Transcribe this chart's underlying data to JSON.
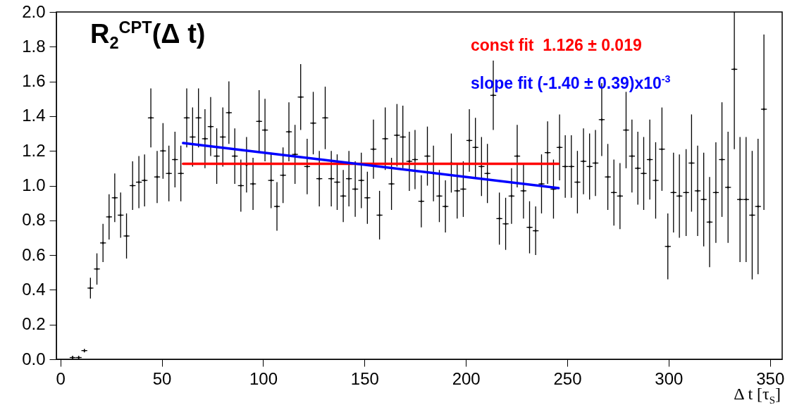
{
  "chart_data": {
    "type": "scatter",
    "title": "R$_{2}$$^{CPT}$(Δ t)",
    "xlabel": "Δ t [τ$_{S}$]",
    "xlim": [
      -2,
      356
    ],
    "ylim": [
      0,
      2
    ],
    "xticks": [
      0,
      50,
      100,
      150,
      200,
      250,
      300,
      350
    ],
    "yticks": [
      {
        "value": 0,
        "label": "0.0"
      },
      0.2,
      0.4,
      0.6,
      0.8,
      {
        "value": 1,
        "label": "1.0"
      },
      1.2,
      1.4,
      1.6,
      1.8,
      {
        "value": 2,
        "label": "2.0"
      }
    ],
    "grid": false,
    "legend": "top right",
    "series": [
      {
        "color": "#000000",
        "marker": "cross",
        "x": [
          6.0,
          9.0,
          11.8,
          14.8,
          18.0,
          21.0,
          24.0,
          26.8,
          29.7,
          32.6,
          35.6,
          38.7,
          41.5,
          44.6,
          47.7,
          50.6,
          53.5,
          56.5,
          59.4,
          62.3,
          65.2,
          68.1,
          71.3,
          74.1,
          77.1,
          80.1,
          83.1,
          86.0,
          89.0,
          91.8,
          95.0,
          98.0,
          100.9,
          103.9,
          106.8,
          109.8,
          112.7,
          115.7,
          118.5,
          121.7,
          124.7,
          127.7,
          130.6,
          133.6,
          136.5,
          139.5,
          142.3,
          145.4,
          148.4,
          151.4,
          154.4,
          157.4,
          160.2,
          163.3,
          166.0,
          168.9,
          172.1,
          174.9,
          178.0,
          181.0,
          184.0,
          186.9,
          189.9,
          192.8,
          195.7,
          198.7,
          201.7,
          204.7,
          207.7,
          210.6,
          213.5,
          216.5,
          219.6,
          222.5,
          225.3,
          228.4,
          231.4,
          234.4,
          237.3,
          240.3,
          243.2,
          246.2,
          249.0,
          252.0,
          255.0,
          258.0,
          261.0,
          263.9,
          267.0,
          270.0,
          273.0,
          276.0,
          279.0,
          281.9,
          284.8,
          287.7,
          290.7,
          293.6,
          296.7,
          299.6,
          302.4,
          305.3,
          308.6,
          311.3,
          314.3,
          317.3,
          320.2,
          323.3,
          326.3,
          329.3,
          332.4,
          335.2,
          338.2,
          341.2,
          344.1,
          347.0
        ],
        "values": [
          0.01,
          0.01,
          0.05,
          0.41,
          0.52,
          0.67,
          0.82,
          0.93,
          0.83,
          0.71,
          1.0,
          1.02,
          1.03,
          1.39,
          1.05,
          1.2,
          1.07,
          1.15,
          1.07,
          1.39,
          1.28,
          1.39,
          1.27,
          1.34,
          1.17,
          1.28,
          1.42,
          1.17,
          1.0,
          1.12,
          1.01,
          1.37,
          1.32,
          1.03,
          0.88,
          1.06,
          1.31,
          1.18,
          1.51,
          1.11,
          1.36,
          1.04,
          1.39,
          1.04,
          1.02,
          0.94,
          1.04,
          0.98,
          1.03,
          0.93,
          1.21,
          0.83,
          1.27,
          1.01,
          1.29,
          1.28,
          1.14,
          1.15,
          0.91,
          1.17,
          1.07,
          0.94,
          0.88,
          1.13,
          0.97,
          0.98,
          1.26,
          1.22,
          1.11,
          1.07,
          1.52,
          0.81,
          0.78,
          0.94,
          1.17,
          0.97,
          0.76,
          0.74,
          1.01,
          1.19,
          0.98,
          1.22,
          1.11,
          1.11,
          1.02,
          1.14,
          1.11,
          1.13,
          1.38,
          1.05,
          0.96,
          0.94,
          1.32,
          1.17,
          1.1,
          1.07,
          1.15,
          1.03,
          1.21,
          0.65,
          0.96,
          0.94,
          0.96,
          1.13,
          0.97,
          0.92,
          0.79,
          0.96,
          1.15,
          0.99,
          1.67,
          0.92,
          0.92,
          0.83,
          0.88,
          1.44
        ],
        "errors": [
          0.01,
          0.01,
          0.01,
          0.06,
          0.09,
          0.11,
          0.13,
          0.14,
          0.13,
          0.13,
          0.14,
          0.15,
          0.15,
          0.17,
          0.15,
          0.16,
          0.16,
          0.16,
          0.16,
          0.17,
          0.17,
          0.17,
          0.17,
          0.17,
          0.16,
          0.17,
          0.18,
          0.16,
          0.15,
          0.16,
          0.15,
          0.18,
          0.18,
          0.16,
          0.14,
          0.16,
          0.17,
          0.17,
          0.19,
          0.16,
          0.18,
          0.16,
          0.18,
          0.16,
          0.16,
          0.15,
          0.16,
          0.16,
          0.16,
          0.15,
          0.17,
          0.14,
          0.18,
          0.15,
          0.18,
          0.18,
          0.17,
          0.17,
          0.15,
          0.17,
          0.16,
          0.15,
          0.15,
          0.17,
          0.16,
          0.16,
          0.18,
          0.17,
          0.17,
          0.17,
          0.2,
          0.15,
          0.15,
          0.16,
          0.18,
          0.16,
          0.15,
          0.14,
          0.17,
          0.18,
          0.17,
          0.19,
          0.18,
          0.18,
          0.18,
          0.19,
          0.19,
          0.19,
          0.21,
          0.19,
          0.19,
          0.19,
          0.22,
          0.21,
          0.21,
          0.21,
          0.23,
          0.22,
          0.24,
          0.19,
          0.23,
          0.24,
          0.25,
          0.28,
          0.26,
          0.27,
          0.26,
          0.29,
          0.33,
          0.32,
          [
            1.21,
            2.0
          ],
          0.36,
          0.36,
          0.37,
          0.39,
          [
            0.86,
            1.87
          ]
        ],
        "xerrors": [
          1.45,
          1.45,
          1.45,
          1.45,
          1.45,
          1.45,
          1.45,
          1.45,
          1.45,
          1.45,
          1.45,
          1.45,
          1.45,
          1.45,
          1.45,
          1.45,
          1.45,
          1.45,
          1.45,
          1.45,
          1.45,
          1.45,
          1.45,
          1.45,
          1.45,
          1.45,
          1.45,
          1.45,
          1.45,
          null,
          1.45,
          1.45,
          1.45,
          1.45,
          1.45,
          1.45,
          1.45,
          1.45,
          1.45,
          1.45,
          1.45,
          1.45,
          1.45,
          1.45,
          1.45,
          1.45,
          1.45,
          1.45,
          1.45,
          1.45,
          1.45,
          1.45,
          1.45,
          1.45,
          1.45,
          1.45,
          1.45,
          1.45,
          1.45,
          1.45,
          null,
          1.45,
          1.45,
          null,
          1.45,
          1.45,
          1.45,
          1.45,
          1.45,
          1.45,
          1.45,
          1.45,
          1.45,
          1.45,
          1.45,
          1.45,
          1.45,
          1.45,
          1.45,
          1.45,
          1.45,
          1.45,
          1.45,
          1.45,
          1.45,
          1.45,
          1.45,
          1.45,
          1.45,
          1.45,
          1.45,
          1.45,
          1.45,
          1.45,
          1.45,
          1.45,
          1.45,
          1.45,
          1.45,
          1.45,
          1.45,
          1.45,
          1.45,
          1.45,
          1.45,
          1.45,
          1.45,
          1.45,
          1.45,
          1.45,
          1.45,
          1.45,
          1.45,
          1.45,
          1.45,
          1.45
        ]
      },
      {
        "name": "const fit  1.126 ± 0.019",
        "type": "line",
        "color": "#ff0000",
        "x": [
          60.5,
          245.7
        ],
        "values": [
          1.126,
          1.126
        ]
      },
      {
        "name": "slope fit (-1.40 ± 0.39)x10$^{-3}$",
        "type": "line",
        "color": "#0000ff",
        "x": [
          60.5,
          245.7
        ],
        "values": [
          1.245,
          0.986
        ]
      }
    ]
  }
}
